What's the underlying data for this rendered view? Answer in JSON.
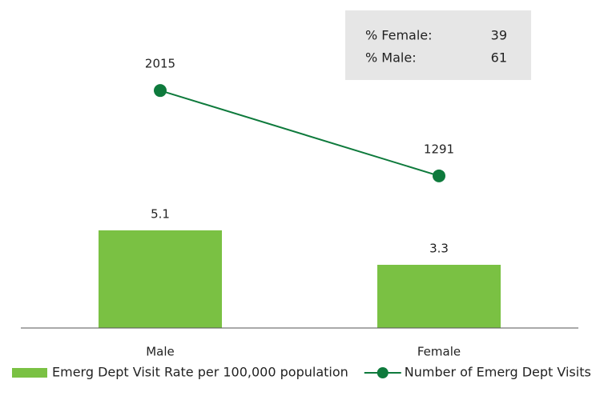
{
  "chart_data": {
    "type": "combo",
    "categories": [
      "Male",
      "Female"
    ],
    "series": [
      {
        "name": "Emerg Dept Visit Rate per 100,000 population",
        "type": "bar",
        "color": "#7ac143",
        "values": [
          5.1,
          3.3
        ]
      },
      {
        "name": "Number of Emerg Dept Visits",
        "type": "line",
        "axis": "y2",
        "color": "#0e7a3c",
        "values": [
          2015,
          1291
        ]
      }
    ],
    "ylim": [
      0,
      16
    ],
    "y2lim": [
      0,
      2600
    ],
    "annotations": [
      {
        "label": "% Female:",
        "value": 39
      },
      {
        "label": "% Male:",
        "value": 61
      }
    ]
  }
}
